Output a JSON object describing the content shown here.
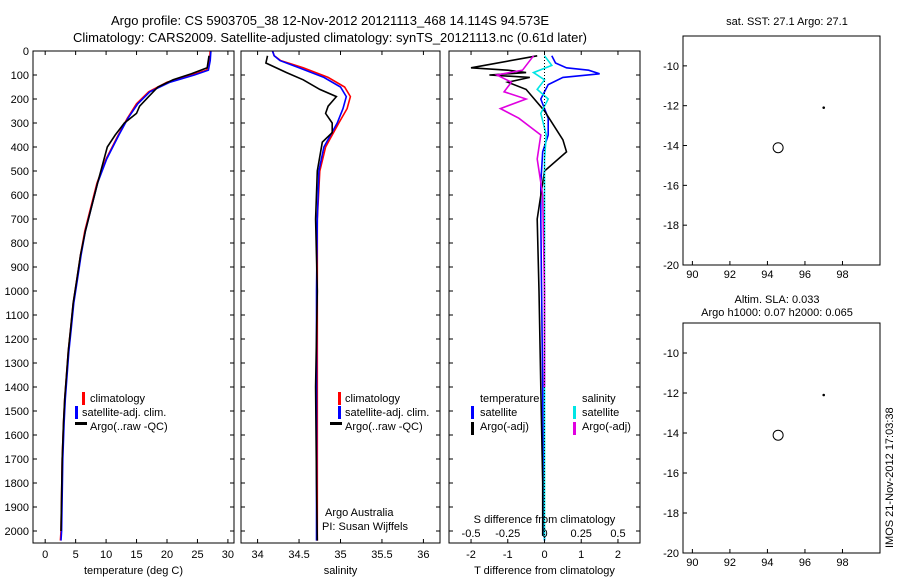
{
  "title_line1": "Argo profile: CS 5903705_38 12-Nov-2012 20121113_468 14.114S 94.573E",
  "title_line2": "Climatology: CARS2009. Satellite-adjusted climatology: synTS_20121113.nc (0.61d later)",
  "side_stamp": "IMOS 21-Nov-2012 17:03:38",
  "colors": {
    "climatology": "#ff0000",
    "satellite": "#0000ff",
    "argo": "#000000",
    "salinity_satellite": "#00e5e5",
    "salinity_argo": "#e000e0"
  },
  "depth_ticks": [
    "0",
    "100",
    "200",
    "300",
    "400",
    "500",
    "600",
    "700",
    "800",
    "900",
    "1000",
    "1100",
    "1200",
    "1300",
    "1400",
    "1500",
    "1600",
    "1700",
    "1800",
    "1900",
    "2000"
  ],
  "chart_data": [
    {
      "type": "line",
      "panel": "temperature",
      "xlabel": "temperature (deg C)",
      "ylabel": "",
      "xlim": [
        -2,
        31
      ],
      "ylim": [
        2050,
        0
      ],
      "xticks": [
        "0",
        "5",
        "10",
        "15",
        "20",
        "25",
        "30"
      ],
      "legend": [
        "climatology",
        "satellite-adj. clim.",
        "Argo(..raw -QC)"
      ],
      "series": [
        {
          "name": "climatology",
          "color": "#ff0000",
          "x": [
            27.1,
            27.0,
            26.5,
            24,
            20,
            17,
            15,
            13.5,
            12,
            11,
            10,
            8.5,
            7.5,
            6.5,
            5.8,
            5.2,
            4.6,
            4.2,
            3.8,
            3.5,
            3.2,
            3.0,
            2.8,
            2.7,
            2.6,
            2.5
          ],
          "y": [
            0,
            40,
            80,
            100,
            130,
            170,
            220,
            280,
            350,
            400,
            450,
            550,
            650,
            750,
            850,
            950,
            1050,
            1150,
            1250,
            1350,
            1450,
            1550,
            1700,
            1850,
            2000,
            2040
          ]
        },
        {
          "name": "satellite-adj. clim.",
          "color": "#0000ff",
          "x": [
            27.2,
            27.1,
            26.8,
            24.5,
            20.5,
            17.2,
            15.2,
            13.6,
            12.1,
            11.1,
            10.1,
            8.6,
            7.6,
            6.6,
            5.9,
            5.3,
            4.7,
            4.3,
            3.9,
            3.6,
            3.3,
            3.1,
            2.9,
            2.8,
            2.7,
            2.6
          ],
          "y": [
            0,
            40,
            80,
            100,
            130,
            170,
            220,
            280,
            350,
            400,
            450,
            550,
            650,
            750,
            850,
            950,
            1050,
            1150,
            1250,
            1350,
            1450,
            1550,
            1700,
            1850,
            2000,
            2040
          ]
        },
        {
          "name": "Argo(..raw -QC)",
          "color": "#000000",
          "x": [
            26.9,
            26.6,
            24,
            21,
            18.5,
            17,
            15.5,
            15,
            13,
            11.5,
            10.2,
            8.6,
            7.6,
            6.6,
            5.8,
            5.2,
            4.6,
            4.2,
            3.8,
            3.5,
            3.2,
            3.0,
            2.8,
            2.7,
            2.6
          ],
          "y": [
            20,
            70,
            95,
            120,
            150,
            190,
            230,
            260,
            300,
            350,
            400,
            550,
            650,
            750,
            850,
            950,
            1050,
            1150,
            1250,
            1350,
            1450,
            1550,
            1700,
            1850,
            2000
          ]
        }
      ]
    },
    {
      "type": "line",
      "panel": "salinity",
      "xlabel": "salinity",
      "ylabel": "",
      "xlim": [
        33.8,
        36.2
      ],
      "ylim": [
        2050,
        0
      ],
      "xticks": [
        "34",
        "34.5",
        "35",
        "35.5",
        "36"
      ],
      "legend": [
        "climatology",
        "satellite-adj. clim.",
        "Argo(..raw -QC)"
      ],
      "annotation": [
        "Argo Australia",
        "PI: Susan Wijffels"
      ],
      "series": [
        {
          "name": "climatology",
          "color": "#ff0000",
          "x": [
            34.18,
            34.2,
            34.28,
            34.55,
            34.85,
            35.05,
            35.12,
            35.08,
            34.98,
            34.9,
            34.82,
            34.75,
            34.72,
            34.72,
            34.72,
            34.72,
            34.72
          ],
          "y": [
            0,
            20,
            40,
            70,
            110,
            150,
            190,
            240,
            300,
            350,
            400,
            500,
            700,
            1000,
            1400,
            1800,
            2040
          ]
        },
        {
          "name": "satellite-adj. clim.",
          "color": "#0000ff",
          "x": [
            34.18,
            34.2,
            34.27,
            34.5,
            34.8,
            35.0,
            35.07,
            35.03,
            34.96,
            34.88,
            34.8,
            34.74,
            34.72,
            34.71,
            34.71,
            34.71,
            34.71
          ],
          "y": [
            0,
            20,
            40,
            70,
            110,
            150,
            190,
            240,
            300,
            350,
            400,
            500,
            700,
            1000,
            1400,
            1800,
            2040
          ]
        },
        {
          "name": "Argo(..raw -QC)",
          "color": "#000000",
          "x": [
            34.12,
            34.1,
            34.35,
            34.55,
            34.75,
            34.95,
            34.85,
            34.82,
            34.9,
            34.9,
            34.78,
            34.72,
            34.7,
            34.72,
            34.7,
            34.71,
            34.72
          ],
          "y": [
            20,
            50,
            90,
            120,
            160,
            190,
            230,
            260,
            300,
            340,
            380,
            500,
            700,
            1000,
            1400,
            1800,
            2040
          ]
        }
      ]
    },
    {
      "type": "line",
      "panel": "differences",
      "xlabel": "T difference from climatology",
      "xlabel_top": "S difference from climatology",
      "ylabel": "",
      "xlim": [
        -2.6,
        2.6
      ],
      "xlim_salinity": [
        -0.65,
        0.65
      ],
      "ylim": [
        2050,
        0
      ],
      "xticks": [
        "-2",
        "-1",
        "0",
        "1",
        "2"
      ],
      "xticks_salinity": [
        "-0.5",
        "-0.25",
        "0",
        "0.25",
        "0.5"
      ],
      "legend_temperature_header": "temperature",
      "legend_salinity_header": "salinity",
      "legend": [
        "satellite",
        "Argo(-adj)",
        "satellite",
        "Argo(-adj)"
      ],
      "series": [
        {
          "name": "temperature satellite",
          "color": "#0000ff",
          "x": [
            0.2,
            0.3,
            0.6,
            1.2,
            1.5,
            0.5,
            0.1,
            -0.1,
            0.1,
            0.1,
            -0.05,
            -0.1,
            -0.1,
            -0.08,
            -0.05,
            -0.03,
            0.0
          ],
          "y": [
            20,
            50,
            70,
            80,
            95,
            110,
            140,
            200,
            280,
            350,
            420,
            550,
            700,
            1000,
            1400,
            1800,
            2040
          ]
        },
        {
          "name": "temperature Argo(-adj)",
          "color": "#000000",
          "x": [
            -0.2,
            -2.0,
            -1.0,
            -0.5,
            -1.5,
            -0.4,
            -1.0,
            -0.5,
            0.0,
            0.5,
            0.6,
            0.0,
            -0.2,
            -0.15,
            -0.1,
            -0.05,
            -0.05
          ],
          "y": [
            20,
            70,
            80,
            90,
            100,
            110,
            130,
            160,
            250,
            370,
            420,
            500,
            700,
            1000,
            1400,
            1800,
            2020
          ]
        },
        {
          "name": "salinity satellite",
          "color": "#00e5e5",
          "x": [
            0.0,
            0.2,
            -0.3,
            0.0,
            -0.2,
            0.1,
            -0.1,
            0.05,
            0.0,
            0.0,
            0.0,
            0.0,
            0.0,
            0.0,
            0.0
          ],
          "y": [
            20,
            60,
            90,
            120,
            160,
            200,
            260,
            350,
            450,
            550,
            700,
            1000,
            1400,
            1800,
            2040
          ]
        },
        {
          "name": "salinity Argo(-adj)",
          "color": "#e000e0",
          "x": [
            -0.3,
            -0.6,
            -1.3,
            -0.9,
            -1.1,
            -0.5,
            -1.2,
            -0.7,
            -0.1,
            -0.2,
            -0.05,
            0.0,
            0.0
          ],
          "y": [
            20,
            80,
            100,
            130,
            170,
            200,
            240,
            280,
            350,
            450,
            600,
            1000,
            1400
          ]
        }
      ]
    },
    {
      "type": "heatmap",
      "panel": "sst_map",
      "title": "sat. SST: 27.1  Argo: 27.1",
      "xlim": [
        89.5,
        100
      ],
      "ylim": [
        -20,
        -8.5
      ],
      "xticks": [
        "90",
        "92",
        "94",
        "96",
        "98"
      ],
      "yticks": [
        "-10",
        "-12",
        "-14",
        "-16",
        "-18",
        "-20"
      ],
      "markers": [
        {
          "lon": 94.57,
          "lat": -14.11,
          "kind": "circle"
        },
        {
          "lon": 97.0,
          "lat": -12.1,
          "kind": "dot"
        }
      ]
    },
    {
      "type": "heatmap",
      "panel": "sla_map",
      "title_line1": "Altim. SLA: 0.033",
      "title_line2": "Argo h1000: 0.07 h2000: 0.065",
      "xlim": [
        89.5,
        100
      ],
      "ylim": [
        -20,
        -8.5
      ],
      "xticks": [
        "90",
        "92",
        "94",
        "96",
        "98"
      ],
      "yticks": [
        "-10",
        "-12",
        "-14",
        "-16",
        "-18",
        "-20"
      ],
      "markers": [
        {
          "lon": 94.57,
          "lat": -14.11,
          "kind": "circle"
        },
        {
          "lon": 97.0,
          "lat": -12.1,
          "kind": "dot"
        }
      ]
    }
  ]
}
